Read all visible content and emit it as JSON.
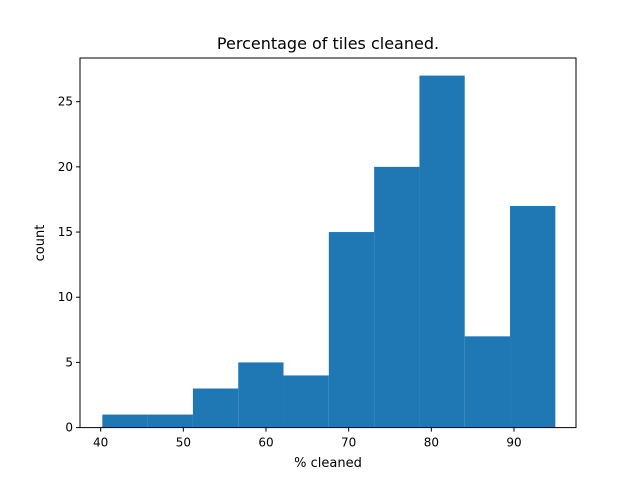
{
  "chart_data": {
    "type": "bar",
    "subtype": "histogram",
    "title": "Percentage of tiles cleaned.",
    "xlabel": "% cleaned",
    "ylabel": "count",
    "bin_edges": [
      40.2,
      45.68,
      51.16,
      56.64,
      62.12,
      67.6,
      73.08,
      78.56,
      84.04,
      89.52,
      95.0
    ],
    "values": [
      1,
      1,
      3,
      5,
      4,
      15,
      20,
      27,
      7,
      17
    ],
    "xlim": [
      37.5,
      97.5
    ],
    "ylim": [
      0,
      28.35
    ],
    "xticks": [
      40,
      50,
      60,
      70,
      80,
      90
    ],
    "yticks": [
      0,
      5,
      10,
      15,
      20,
      25
    ],
    "bar_color": "#1f77b4",
    "grid": false,
    "legend": "none"
  }
}
